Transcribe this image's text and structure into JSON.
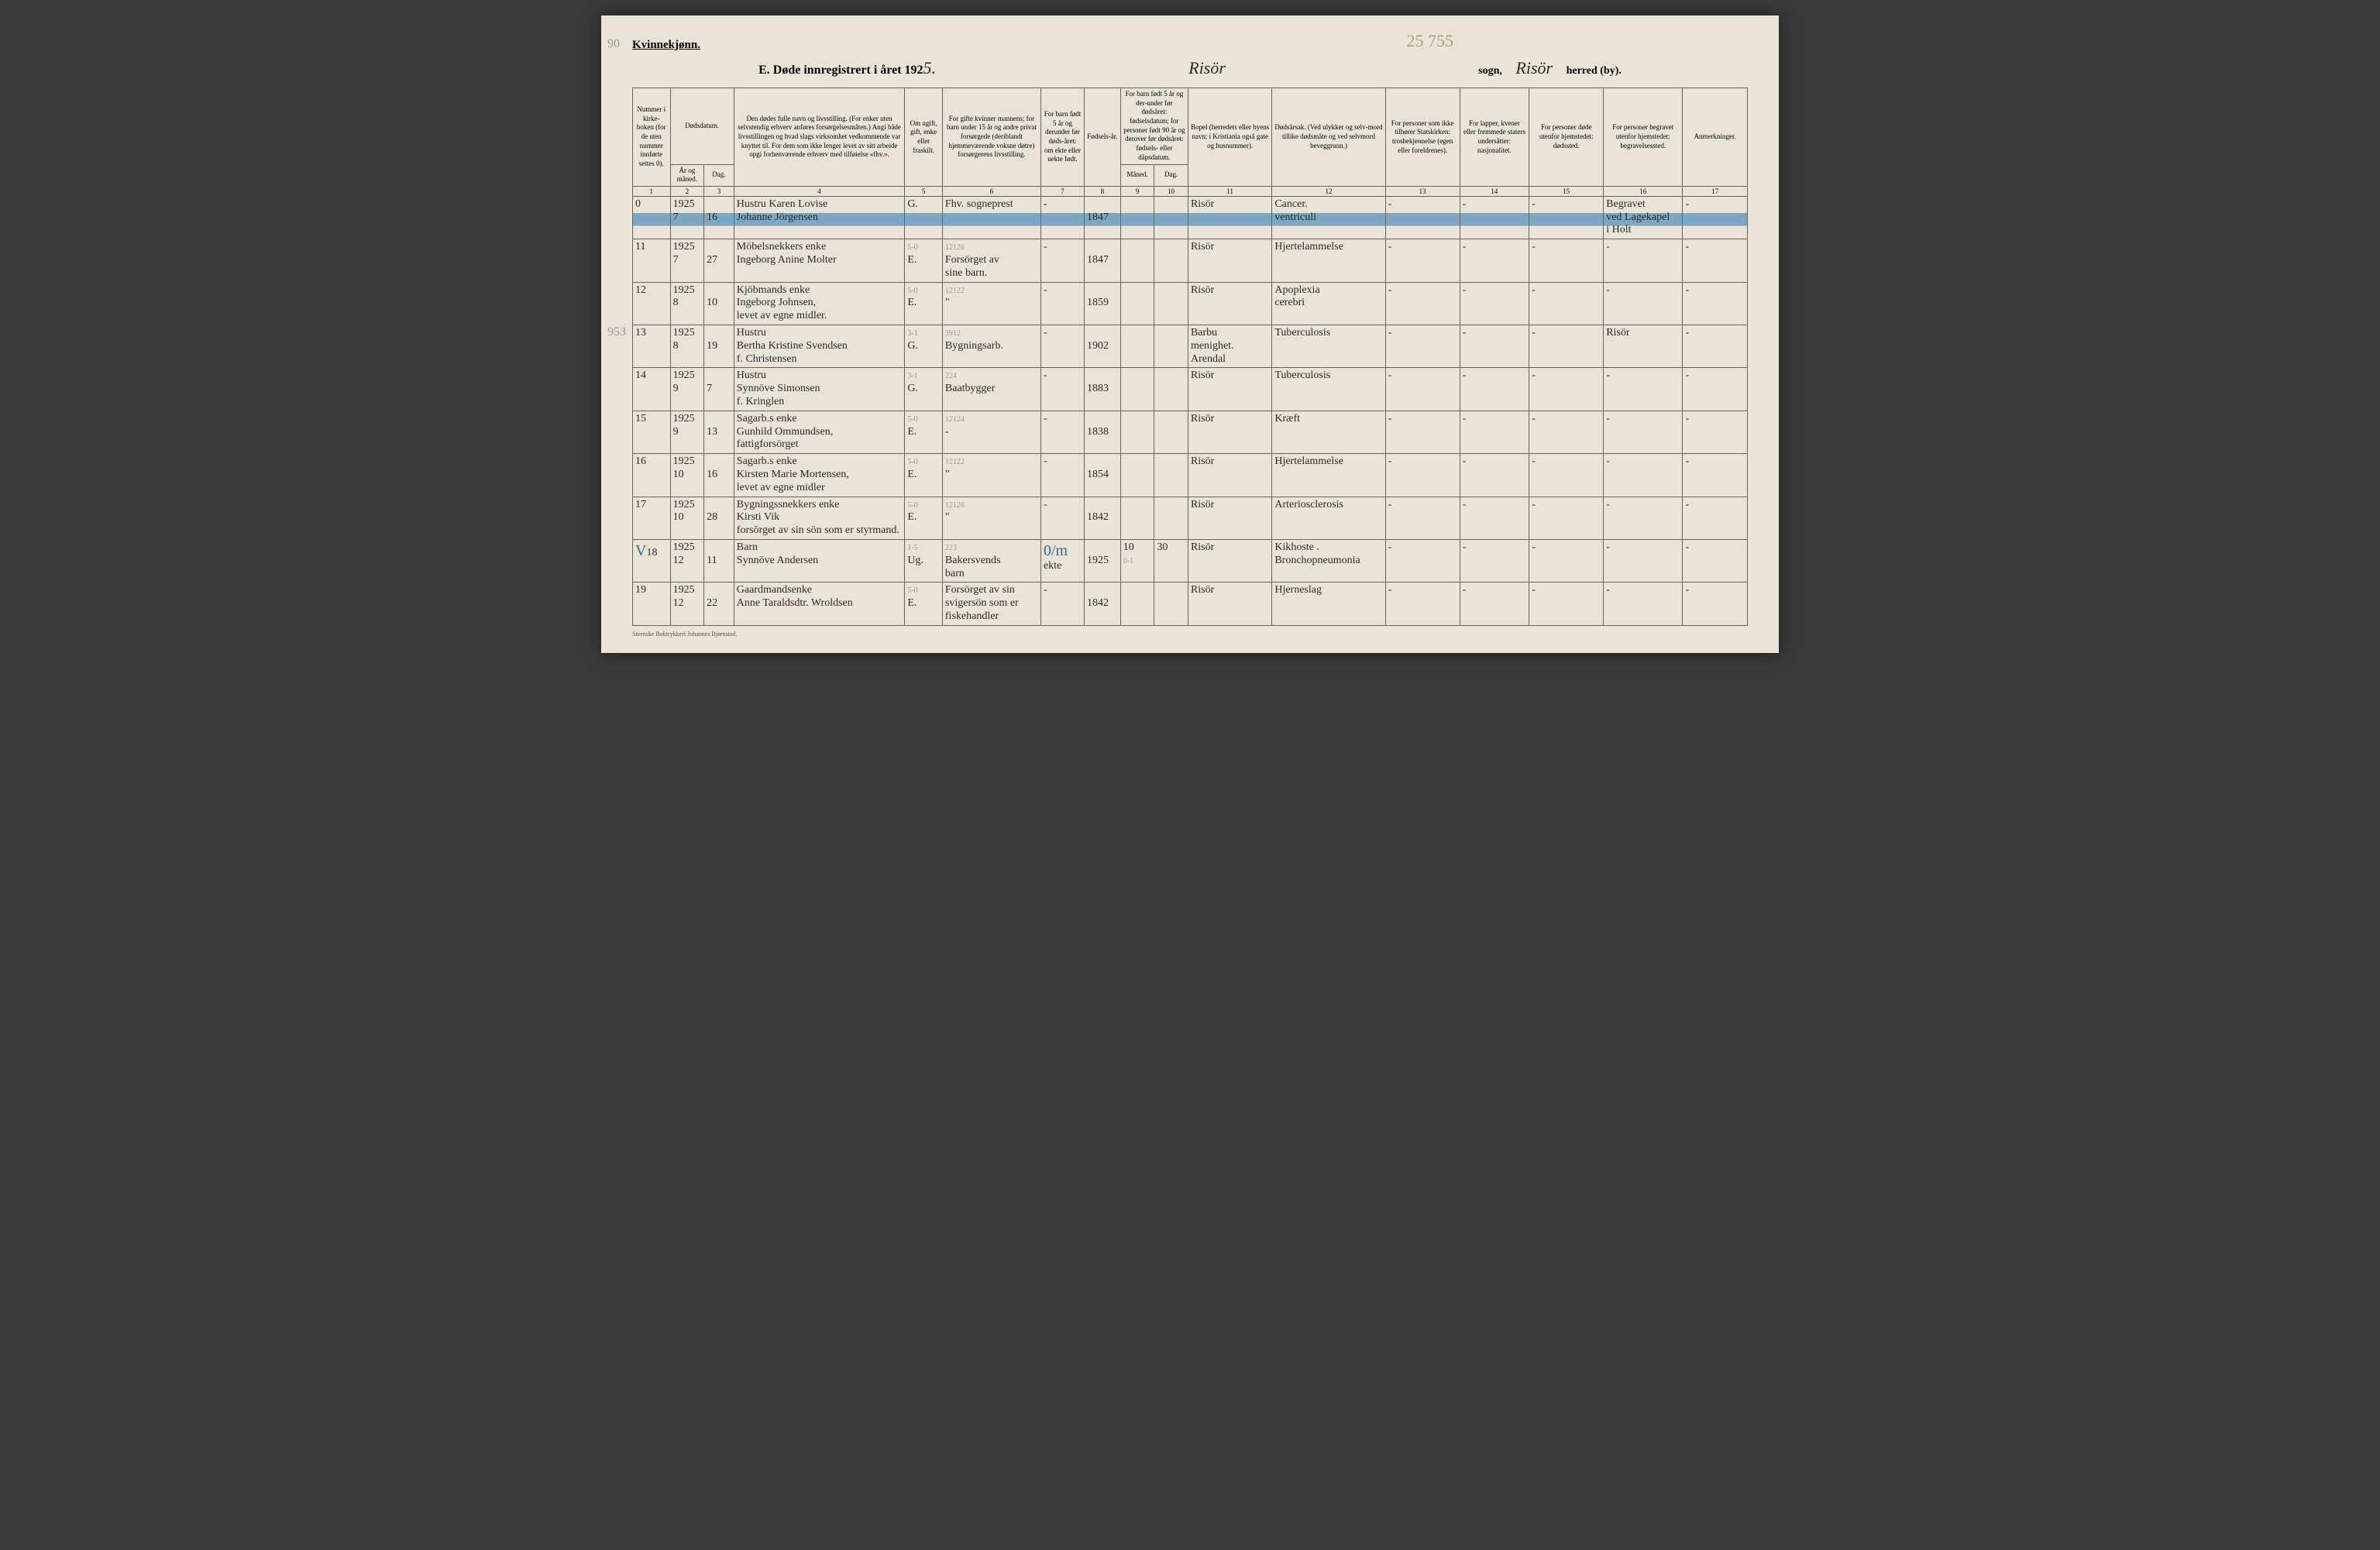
{
  "page": {
    "margin_top": "90",
    "margin_mid": "953",
    "top_pencil": "25 755",
    "gender_label": "Kvinnekjønn.",
    "title_prefix": "E.  Døde innregistrert i året 192",
    "title_year_suffix": "5.",
    "sogn_name": "Risör",
    "sogn_label": "sogn,",
    "herred_name": "Risör",
    "herred_label": "herred (by).",
    "footer": "Steenske Boktrykkeri Johannes Bjørnstad."
  },
  "headers": {
    "c1": "Nummer i kirke-boken (for de uten nummer innførte settes 0).",
    "c2a": "Dødsdatum.",
    "c2b": "År og måned.",
    "c3": "Dag.",
    "c4": "Den dødes fulle navn og livsstilling. (For enker uten selvstendig erhverv anføres forsørgelsesmåten.) Angi både livsstillingen og hvad slags virksomhet vedkommende var knyttet til. For dem som ikke lenger levet av sitt arbeide opgi forhenværende erhverv med tilføielse «fhv.».",
    "c5": "Om ugift, gift, enke eller fraskilt.",
    "c6": "For gifte kvinner mannens; for barn under 15 år og andre privat forsørgede (deriblandt hjemmeværende voksne døtre) forsørgerens livsstilling.",
    "c7": "For barn født 5 år og derunder før døds-året: om ekte eller uekte født.",
    "c8": "Fødsels-år.",
    "c9a": "For barn født 5 år og der-under før dødsåret: fødselsdatum; for personer født 90 år og derover før dødsåret: fødsels- eller dåpsdatum.",
    "c9b": "Måned.",
    "c10": "Dag.",
    "c11": "Bopel (herredets eller byens navn; i Kristiania også gate og husnummer).",
    "c12": "Dødsårsak. (Ved ulykker og selv-mord tillike dødsmåte og ved selvmord beveggrunn.)",
    "c13": "For personer som ikke tilhører Statskirken: trosbekjennelse (egen eller foreldrenes).",
    "c14": "For lapper, kvener eller fremmede staters undersåtter: nasjonalitet.",
    "c15": "For personer døde utenfor hjemstedet: dødssted.",
    "c16": "For personer begravet utenfor hjemstedet: begravelsessted.",
    "c17": "Anmerkninger."
  },
  "colnums": [
    "1",
    "2",
    "3",
    "4",
    "5",
    "6",
    "7",
    "8",
    "9",
    "10",
    "11",
    "12",
    "13",
    "14",
    "15",
    "16",
    "17"
  ],
  "rows": [
    {
      "num": "0",
      "year": "1925",
      "mon": "7",
      "day": "16",
      "name": "Hustru Karen Lovise\nJohanne Jörgensen",
      "status": "G.",
      "occ": "Fhv. sogneprest",
      "ekte": "-",
      "birth": "1847",
      "bmon": "",
      "bday": "",
      "bopel": "Risör",
      "cause": "Cancer.\nventriculi",
      "c13": "-",
      "c14": "-",
      "c15": "-",
      "c16": "Begravet\nved Lagekapel\ni Holt",
      "c17": "-",
      "highlight": true
    },
    {
      "num": "11",
      "year": "1925",
      "mon": "7",
      "day": "27",
      "name": "Möbelsnekkers enke\nIngeborg Anine Molter",
      "status_pencil": "5-0",
      "status": "E.",
      "occ_pencil": "12126",
      "occ": "Forsörget av\nsine barn.",
      "ekte": "-",
      "birth": "1847",
      "bmon": "",
      "bday": "",
      "bopel": "Risör",
      "cause": "Hjertelammelse",
      "c13": "-",
      "c14": "-",
      "c15": "-",
      "c16": "-",
      "c17": "-"
    },
    {
      "num": "12",
      "year": "1925",
      "mon": "8",
      "day": "10",
      "name": "Kjöbmands enke\nIngeborg Johnsen,\nlevet av egne midler.",
      "status_pencil": "5-0",
      "status": "E.",
      "occ_pencil": "12122",
      "occ": "\"",
      "ekte": "-",
      "birth": "1859",
      "bmon": "",
      "bday": "",
      "bopel": "Risör",
      "cause": "Apoplexia\ncerebri",
      "c13": "-",
      "c14": "-",
      "c15": "-",
      "c16": "-",
      "c17": "-"
    },
    {
      "num": "13",
      "year": "1925",
      "mon": "8",
      "day": "19",
      "name": "Hustru\nBertha Kristine Svendsen\nf. Christensen",
      "status_pencil": "3-1",
      "status": "G.",
      "occ_pencil": "3912",
      "occ": "Bygningsarb.",
      "ekte": "-",
      "birth": "1902",
      "bmon": "",
      "bday": "",
      "bopel": "Barbu\nmenighet.\nArendal",
      "cause": "Tuberculosis",
      "c13": "-",
      "c14": "-",
      "c15": "-",
      "c16": "Risör",
      "c17": "-"
    },
    {
      "num": "14",
      "year": "1925",
      "mon": "9",
      "day": "7",
      "name": "Hustru\nSynnöve Simonsen\nf. Kringlen",
      "status_pencil": "3-1",
      "status": "G.",
      "occ_pencil": "224",
      "occ": "Baatbygger",
      "ekte": "-",
      "birth": "1883",
      "bmon": "",
      "bday": "",
      "bopel": "Risör",
      "cause": "Tuberculosis",
      "c13": "-",
      "c14": "-",
      "c15": "-",
      "c16": "-",
      "c17": "-"
    },
    {
      "num": "15",
      "year": "1925",
      "mon": "9",
      "day": "13",
      "name": "Sagarb.s enke\nGunhild Ommundsen,\nfattigforsörget",
      "status_pencil": "5-0",
      "status": "E.",
      "occ_pencil": "12124",
      "occ": "-",
      "ekte": "-",
      "birth": "1838",
      "bmon": "",
      "bday": "",
      "bopel": "Risör",
      "cause": "Kræft",
      "c13": "-",
      "c14": "-",
      "c15": "-",
      "c16": "-",
      "c17": "-"
    },
    {
      "num": "16",
      "year": "1925",
      "mon": "10",
      "day": "16",
      "name": "Sagarb.s enke\nKirsten Marie Mortensen,\nlevet av egne midler",
      "status_pencil": "5-0",
      "status": "E.",
      "occ_pencil": "12122",
      "occ": "\"",
      "ekte": "-",
      "birth": "1854",
      "bmon": "",
      "bday": "",
      "bopel": "Risör",
      "cause": "Hjertelammelse",
      "c13": "-",
      "c14": "-",
      "c15": "-",
      "c16": "-",
      "c17": "-"
    },
    {
      "num": "17",
      "year": "1925",
      "mon": "10",
      "day": "28",
      "name": "Bygningssnekkers enke\nKirsti Vik\nforsörget av sin sön som er styrmand.",
      "status_pencil": "5-0",
      "status": "E.",
      "occ_pencil": "12126",
      "occ": "\"",
      "ekte": "-",
      "birth": "1842",
      "bmon": "",
      "bday": "",
      "bopel": "Risör",
      "cause": "Arteriosclerosis",
      "c13": "-",
      "c14": "-",
      "c15": "-",
      "c16": "-",
      "c17": "-"
    },
    {
      "num": "18",
      "num_prefix": "V",
      "year": "1925",
      "mon": "12",
      "day": "11",
      "name": "Barn\nSynnöve Andersen",
      "status_pencil": "1-5",
      "status": "Ug.",
      "occ_pencil": "223",
      "occ": "Bakersvends\nbarn",
      "ekte": "ekte",
      "ekte_blue": "0/m",
      "birth": "1925",
      "bmon": "10",
      "bday": "30",
      "bmon_pencil": "0-1",
      "bopel": "Risör",
      "cause": "Kikhoste .\nBronchopneumonia",
      "c13": "-",
      "c14": "-",
      "c15": "-",
      "c16": "-",
      "c17": "-"
    },
    {
      "num": "19",
      "year": "1925",
      "mon": "12",
      "day": "22",
      "name": "Gaardmandsenke\nAnne Taraldsdtr. Wroldsen",
      "status_pencil": "5-0",
      "status": "E.",
      "occ": "Forsörget av sin\nsvigersön som er\nfiskehandler",
      "ekte": "-",
      "birth": "1842",
      "bmon": "",
      "bday": "",
      "bopel": "Risör",
      "cause": "Hjerneslag",
      "c13": "-",
      "c14": "-",
      "c15": "-",
      "c16": "-",
      "c17": "-"
    }
  ]
}
